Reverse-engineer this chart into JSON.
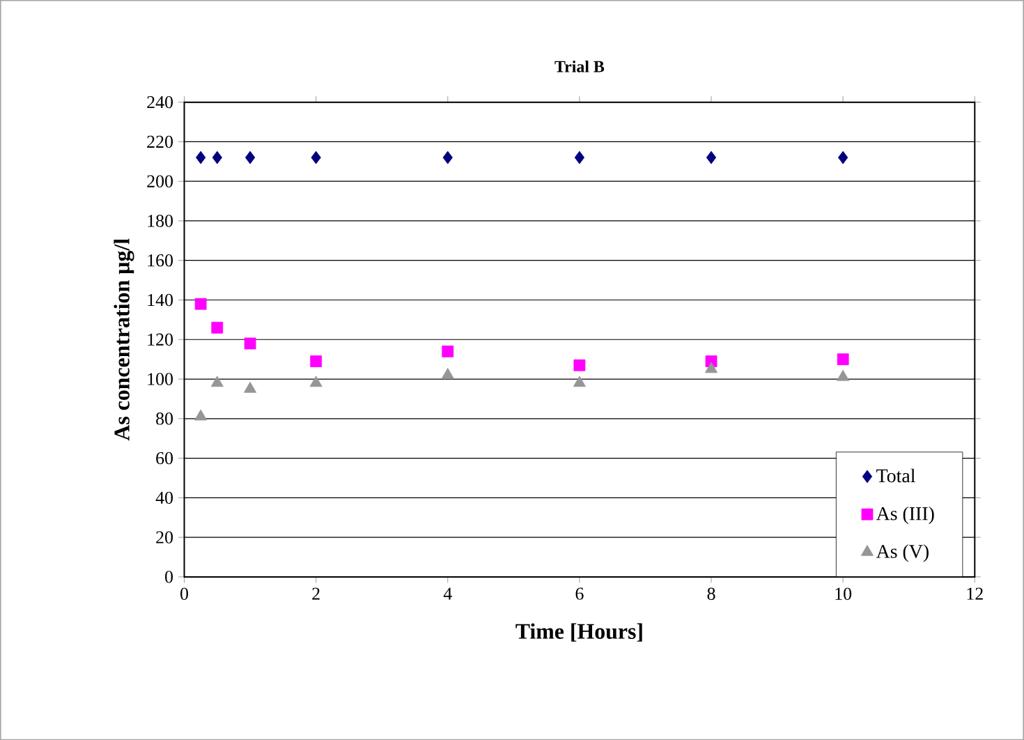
{
  "chart_data": {
    "type": "scatter",
    "title": "Trial B",
    "xlabel": "Time [Hours]",
    "ylabel": "As concentration µg/l",
    "xlim": [
      0,
      12
    ],
    "xticks": [
      0,
      2,
      4,
      6,
      8,
      10,
      12
    ],
    "ylim": [
      0,
      240
    ],
    "yticks": [
      0,
      20,
      40,
      60,
      80,
      100,
      120,
      140,
      160,
      180,
      200,
      220,
      240
    ],
    "grid": "y",
    "legend": "bottom right",
    "series": [
      {
        "name": "Total",
        "color": "#000080",
        "marker": "diamond",
        "x": [
          0.25,
          0.5,
          1,
          2,
          4,
          6,
          8,
          10
        ],
        "values": [
          212,
          212,
          212,
          212,
          212,
          212,
          212,
          212
        ]
      },
      {
        "name": "As (III)",
        "color": "#ff00ff",
        "marker": "square",
        "x": [
          0.25,
          0.5,
          1,
          2,
          4,
          6,
          8,
          10
        ],
        "values": [
          138,
          126,
          118,
          109,
          114,
          107,
          109,
          110
        ]
      },
      {
        "name": "As (V)",
        "color": "#969696",
        "marker": "triangle",
        "x": [
          0.25,
          0.5,
          1,
          2,
          4,
          6,
          8,
          10
        ],
        "values": [
          81,
          98,
          95,
          98,
          102,
          98,
          105,
          101
        ]
      }
    ]
  }
}
